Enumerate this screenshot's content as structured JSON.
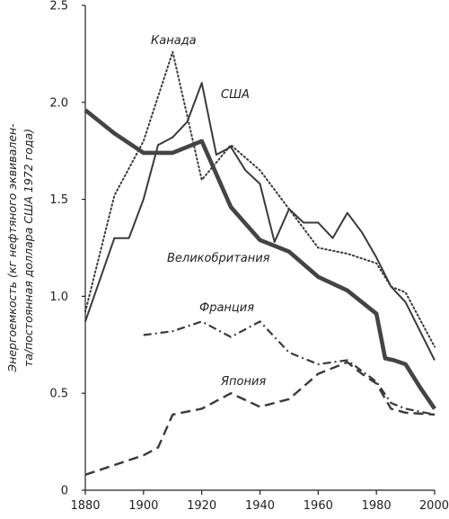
{
  "chart_data": {
    "type": "line",
    "ylabel_line1": "Энергоемкость (кг нефтяного эквивален-",
    "ylabel_line2": "та/постоянная доллара США 1972 года)",
    "xlim": [
      1880,
      2000
    ],
    "ylim": [
      0,
      2.5
    ],
    "x_ticks": [
      "1880",
      "1900",
      "1920",
      "1940",
      "1960",
      "1980",
      "2000"
    ],
    "y_ticks": [
      "0",
      "0.5",
      "1.0",
      "1.5",
      "2.0",
      "2.5"
    ],
    "x_tick_values": [
      1880,
      1900,
      1920,
      1940,
      1960,
      1980,
      2000
    ],
    "y_tick_values": [
      0,
      0.5,
      1.0,
      1.5,
      2.0,
      2.5
    ],
    "grid": false,
    "series": [
      {
        "name": "Канада",
        "style": "dotted",
        "color": "#3a3a3a",
        "points": [
          [
            1880,
            0.92
          ],
          [
            1890,
            1.52
          ],
          [
            1900,
            1.8
          ],
          [
            1910,
            2.26
          ],
          [
            1920,
            1.6
          ],
          [
            1930,
            1.78
          ],
          [
            1940,
            1.65
          ],
          [
            1950,
            1.45
          ],
          [
            1960,
            1.25
          ],
          [
            1970,
            1.22
          ],
          [
            1980,
            1.17
          ],
          [
            1985,
            1.05
          ],
          [
            1990,
            1.02
          ],
          [
            1995,
            0.88
          ],
          [
            2000,
            0.74
          ]
        ]
      },
      {
        "name": "США",
        "style": "solid-thin",
        "color": "#3a3a3a",
        "points": [
          [
            1880,
            0.87
          ],
          [
            1890,
            1.3
          ],
          [
            1895,
            1.3
          ],
          [
            1900,
            1.5
          ],
          [
            1905,
            1.78
          ],
          [
            1910,
            1.82
          ],
          [
            1915,
            1.9
          ],
          [
            1920,
            2.1
          ],
          [
            1925,
            1.73
          ],
          [
            1930,
            1.77
          ],
          [
            1935,
            1.65
          ],
          [
            1940,
            1.58
          ],
          [
            1945,
            1.28
          ],
          [
            1950,
            1.45
          ],
          [
            1955,
            1.38
          ],
          [
            1960,
            1.38
          ],
          [
            1965,
            1.3
          ],
          [
            1970,
            1.43
          ],
          [
            1975,
            1.33
          ],
          [
            1980,
            1.2
          ],
          [
            1985,
            1.05
          ],
          [
            1990,
            0.97
          ],
          [
            1995,
            0.82
          ],
          [
            2000,
            0.67
          ]
        ]
      },
      {
        "name": "Великобритания",
        "style": "solid-thick",
        "color": "#444444",
        "points": [
          [
            1880,
            1.96
          ],
          [
            1890,
            1.84
          ],
          [
            1900,
            1.74
          ],
          [
            1910,
            1.74
          ],
          [
            1920,
            1.8
          ],
          [
            1930,
            1.46
          ],
          [
            1940,
            1.29
          ],
          [
            1950,
            1.23
          ],
          [
            1960,
            1.1
          ],
          [
            1970,
            1.03
          ],
          [
            1980,
            0.91
          ],
          [
            1983,
            0.68
          ],
          [
            1986,
            0.67
          ],
          [
            1990,
            0.65
          ],
          [
            1995,
            0.53
          ],
          [
            2000,
            0.42
          ]
        ]
      },
      {
        "name": "Франция",
        "style": "dash-dot",
        "color": "#3a3a3a",
        "points": [
          [
            1900,
            0.8
          ],
          [
            1910,
            0.82
          ],
          [
            1920,
            0.87
          ],
          [
            1930,
            0.79
          ],
          [
            1940,
            0.87
          ],
          [
            1950,
            0.71
          ],
          [
            1960,
            0.65
          ],
          [
            1970,
            0.67
          ],
          [
            1980,
            0.56
          ],
          [
            1985,
            0.45
          ],
          [
            1990,
            0.42
          ],
          [
            2000,
            0.39
          ]
        ]
      },
      {
        "name": "Япония",
        "style": "dashed",
        "color": "#3a3a3a",
        "points": [
          [
            1880,
            0.08
          ],
          [
            1890,
            0.13
          ],
          [
            1900,
            0.18
          ],
          [
            1905,
            0.22
          ],
          [
            1910,
            0.39
          ],
          [
            1920,
            0.42
          ],
          [
            1930,
            0.5
          ],
          [
            1940,
            0.43
          ],
          [
            1950,
            0.47
          ],
          [
            1960,
            0.6
          ],
          [
            1970,
            0.66
          ],
          [
            1975,
            0.6
          ],
          [
            1980,
            0.55
          ],
          [
            1985,
            0.42
          ],
          [
            1990,
            0.4
          ],
          [
            2000,
            0.39
          ]
        ]
      }
    ]
  }
}
